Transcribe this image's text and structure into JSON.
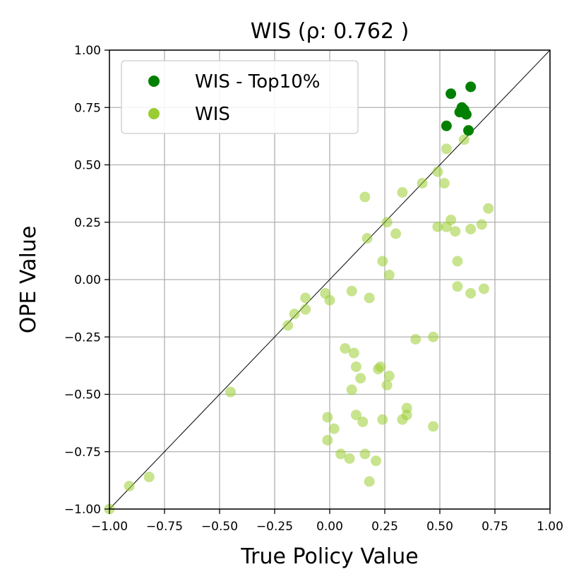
{
  "chart_data": {
    "type": "scatter",
    "title": "WIS (ρ: 0.762 )",
    "xlabel": "True Policy Value",
    "ylabel": "OPE Value",
    "xlim": [
      -1.0,
      1.0
    ],
    "ylim": [
      -1.0,
      1.0
    ],
    "xticks": [
      "−1.00",
      "−0.75",
      "−0.50",
      "−0.25",
      "0.00",
      "0.25",
      "0.50",
      "0.75",
      "1.00"
    ],
    "yticks": [
      "1.00",
      "0.75",
      "0.50",
      "0.25",
      "0.00",
      "−0.25",
      "−0.50",
      "−0.75",
      "−1.00"
    ],
    "grid": true,
    "legend_position": "top-left",
    "diagonal_line": true,
    "series": [
      {
        "name": "WIS - Top10%",
        "color": "#008000",
        "opacity": 1.0,
        "points": [
          [
            0.55,
            0.81
          ],
          [
            0.64,
            0.84
          ],
          [
            0.59,
            0.73
          ],
          [
            0.6,
            0.75
          ],
          [
            0.61,
            0.74
          ],
          [
            0.62,
            0.72
          ],
          [
            0.53,
            0.67
          ],
          [
            0.63,
            0.65
          ]
        ]
      },
      {
        "name": "WIS",
        "color": "#9acd32",
        "opacity": 0.55,
        "points": [
          [
            -1.0,
            -1.0
          ],
          [
            -0.91,
            -0.9
          ],
          [
            -0.82,
            -0.86
          ],
          [
            -0.45,
            -0.49
          ],
          [
            -0.19,
            -0.2
          ],
          [
            -0.16,
            -0.15
          ],
          [
            -0.11,
            -0.13
          ],
          [
            -0.11,
            -0.08
          ],
          [
            -0.02,
            -0.06
          ],
          [
            0.0,
            -0.09
          ],
          [
            -0.01,
            -0.6
          ],
          [
            -0.01,
            -0.7
          ],
          [
            0.02,
            -0.65
          ],
          [
            0.05,
            -0.76
          ],
          [
            0.07,
            -0.3
          ],
          [
            0.09,
            -0.78
          ],
          [
            0.1,
            -0.48
          ],
          [
            0.11,
            -0.32
          ],
          [
            0.12,
            -0.38
          ],
          [
            0.12,
            -0.59
          ],
          [
            0.14,
            -0.43
          ],
          [
            0.15,
            -0.62
          ],
          [
            0.16,
            -0.76
          ],
          [
            0.18,
            -0.88
          ],
          [
            0.21,
            -0.79
          ],
          [
            0.22,
            -0.39
          ],
          [
            0.23,
            -0.38
          ],
          [
            0.24,
            -0.61
          ],
          [
            0.26,
            -0.46
          ],
          [
            0.27,
            -0.42
          ],
          [
            0.33,
            -0.61
          ],
          [
            0.35,
            -0.56
          ],
          [
            0.35,
            -0.59
          ],
          [
            0.39,
            -0.26
          ],
          [
            0.47,
            -0.25
          ],
          [
            0.47,
            -0.64
          ],
          [
            0.1,
            -0.05
          ],
          [
            0.18,
            -0.08
          ],
          [
            0.16,
            0.36
          ],
          [
            0.17,
            0.18
          ],
          [
            0.24,
            0.08
          ],
          [
            0.26,
            0.25
          ],
          [
            0.27,
            0.02
          ],
          [
            0.3,
            0.2
          ],
          [
            0.33,
            0.38
          ],
          [
            0.42,
            0.42
          ],
          [
            0.49,
            0.47
          ],
          [
            0.49,
            0.23
          ],
          [
            0.52,
            0.42
          ],
          [
            0.53,
            0.57
          ],
          [
            0.53,
            0.23
          ],
          [
            0.55,
            0.26
          ],
          [
            0.57,
            0.21
          ],
          [
            0.58,
            -0.03
          ],
          [
            0.58,
            0.08
          ],
          [
            0.61,
            0.61
          ],
          [
            0.64,
            0.22
          ],
          [
            0.64,
            -0.06
          ],
          [
            0.69,
            0.24
          ],
          [
            0.7,
            -0.04
          ],
          [
            0.72,
            0.31
          ]
        ]
      }
    ]
  }
}
